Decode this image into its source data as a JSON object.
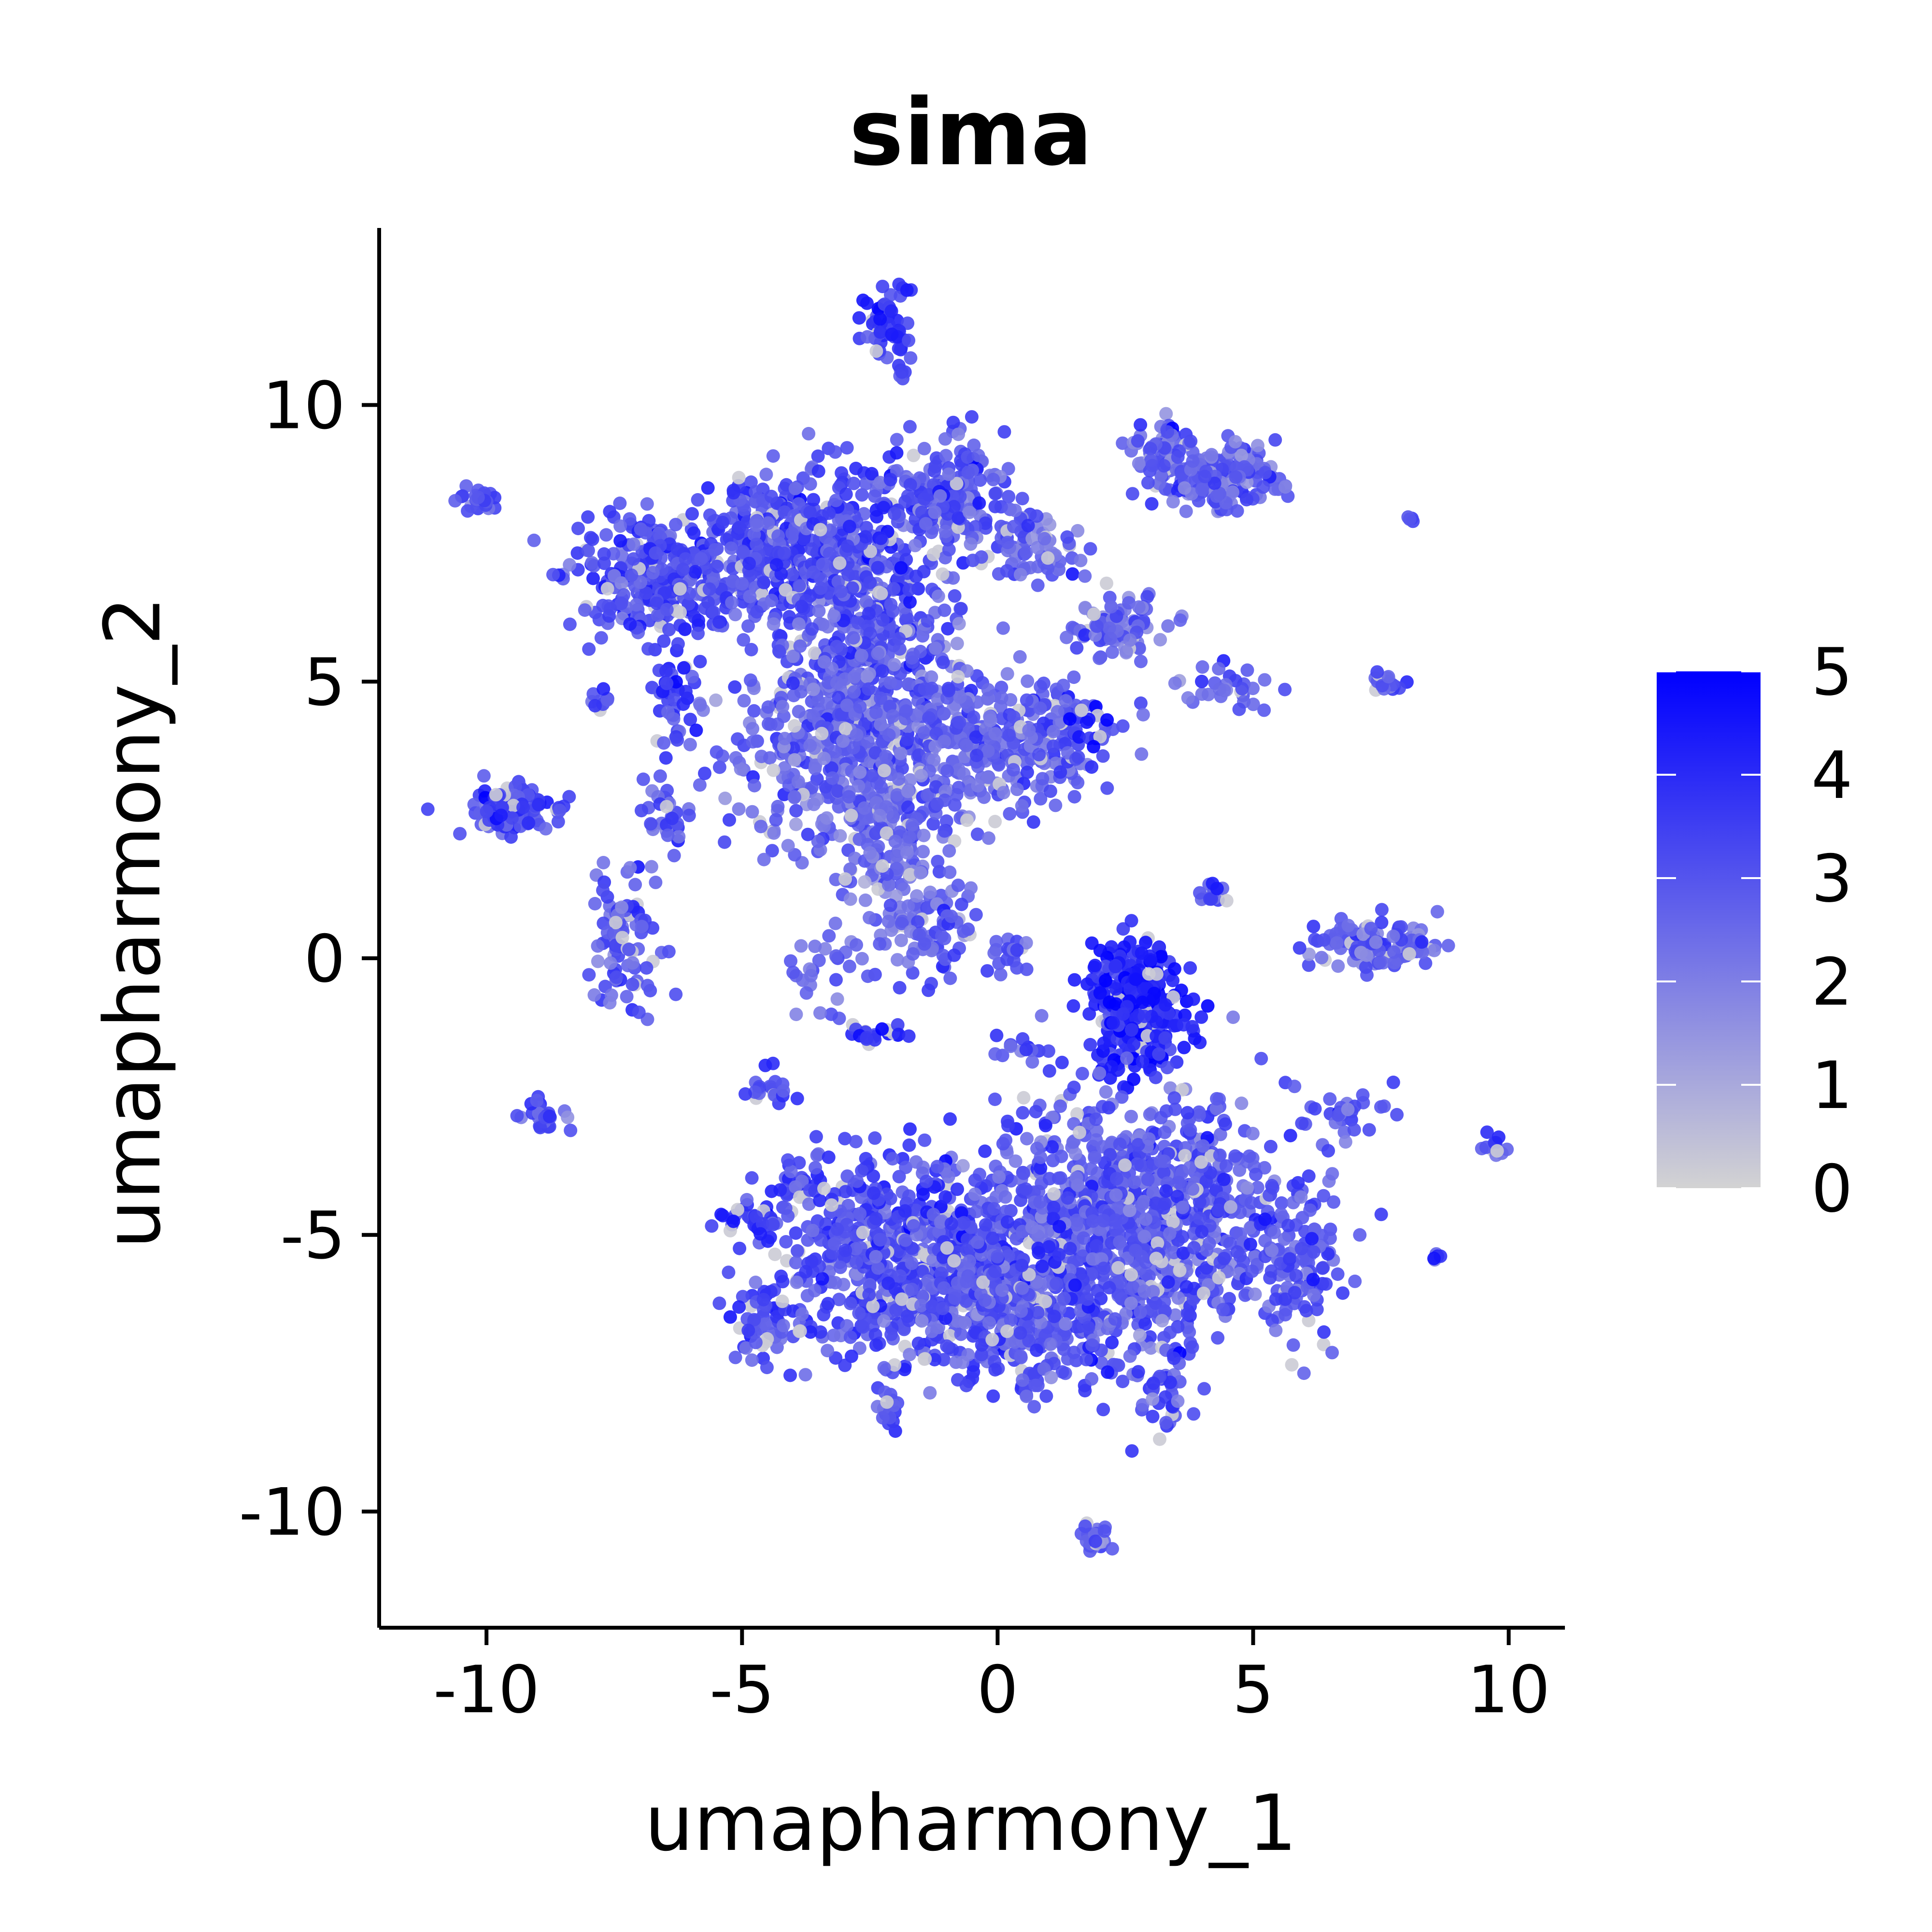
{
  "chart_data": {
    "type": "scatter",
    "title": "sima",
    "xlabel": "umapharmony_1",
    "ylabel": "umapharmony_2",
    "xlim": [
      -12.1,
      11.1
    ],
    "ylim": [
      -12.1,
      13.2
    ],
    "x_ticks": [
      -10,
      -5,
      0,
      5,
      10
    ],
    "y_ticks": [
      -10,
      -5,
      0,
      5,
      10
    ],
    "x_tick_labels": [
      "-10",
      "-5",
      "0",
      "5",
      "10"
    ],
    "y_tick_labels": [
      "-10",
      "-5",
      "0",
      "5",
      "10"
    ],
    "grid": false,
    "color_scale": {
      "low_color": "#d3d3d3",
      "high_color": "#0000ff",
      "min": 0,
      "max": 5,
      "ticks": [
        0,
        1,
        2,
        3,
        4,
        5
      ],
      "tick_labels": [
        "0",
        "1",
        "2",
        "3",
        "4",
        "5"
      ],
      "legend_position": "right"
    },
    "clusters": [
      {
        "cx": -2.2,
        "cy": 11.4,
        "sx": 0.25,
        "sy": 0.35,
        "n": 60,
        "v": 3.8
      },
      {
        "cx": -1.9,
        "cy": 10.6,
        "sx": 0.1,
        "sy": 0.1,
        "n": 6,
        "v": 3.5
      },
      {
        "cx": -10.2,
        "cy": 8.3,
        "sx": 0.2,
        "sy": 0.12,
        "n": 25,
        "v": 3.0
      },
      {
        "cx": -9.5,
        "cy": 2.7,
        "sx": 0.45,
        "sy": 0.22,
        "n": 120,
        "v": 3.3
      },
      {
        "cx": -6.4,
        "cy": 6.9,
        "sx": 0.85,
        "sy": 0.55,
        "n": 380,
        "v": 3.3
      },
      {
        "cx": -4.3,
        "cy": 7.5,
        "sx": 0.5,
        "sy": 0.6,
        "n": 220,
        "v": 3.2
      },
      {
        "cx": -2.7,
        "cy": 6.6,
        "sx": 0.8,
        "sy": 1.1,
        "n": 480,
        "v": 3.2
      },
      {
        "cx": -1.0,
        "cy": 8.4,
        "sx": 0.6,
        "sy": 0.5,
        "n": 180,
        "v": 2.9
      },
      {
        "cx": -2.5,
        "cy": 3.8,
        "sx": 1.3,
        "sy": 1.0,
        "n": 650,
        "v": 2.7
      },
      {
        "cx": 0.6,
        "cy": 4.0,
        "sx": 0.9,
        "sy": 0.55,
        "n": 220,
        "v": 2.8
      },
      {
        "cx": 1.8,
        "cy": 4.2,
        "sx": 0.2,
        "sy": 0.2,
        "n": 12,
        "v": 4.8
      },
      {
        "cx": 0.7,
        "cy": 7.4,
        "sx": 0.6,
        "sy": 0.3,
        "n": 80,
        "v": 2.6
      },
      {
        "cx": -2.0,
        "cy": 1.5,
        "sx": 0.6,
        "sy": 0.9,
        "n": 140,
        "v": 2.6
      },
      {
        "cx": -6.3,
        "cy": 4.6,
        "sx": 0.25,
        "sy": 0.45,
        "n": 40,
        "v": 3.5
      },
      {
        "cx": -6.5,
        "cy": 2.6,
        "sx": 0.2,
        "sy": 0.4,
        "n": 30,
        "v": 3.0
      },
      {
        "cx": -7.3,
        "cy": 0.3,
        "sx": 0.35,
        "sy": 0.7,
        "n": 90,
        "v": 3.0
      },
      {
        "cx": -7.8,
        "cy": 4.7,
        "sx": 0.15,
        "sy": 0.12,
        "n": 10,
        "v": 3.2
      },
      {
        "cx": -8.9,
        "cy": -2.8,
        "sx": 0.2,
        "sy": 0.15,
        "n": 25,
        "v": 3.2
      },
      {
        "cx": -4.8,
        "cy": -4.7,
        "sx": 0.3,
        "sy": 0.15,
        "n": 30,
        "v": 3.4
      },
      {
        "cx": -4.5,
        "cy": -6.7,
        "sx": 0.3,
        "sy": 0.3,
        "n": 50,
        "v": 3.3
      },
      {
        "cx": -4.6,
        "cy": -2.4,
        "sx": 0.25,
        "sy": 0.18,
        "n": 20,
        "v": 3.3
      },
      {
        "cx": -4.0,
        "cy": -4.0,
        "sx": 0.25,
        "sy": 0.2,
        "n": 20,
        "v": 3.5
      },
      {
        "cx": -2.2,
        "cy": -8.2,
        "sx": 0.12,
        "sy": 0.18,
        "n": 15,
        "v": 3.3
      },
      {
        "cx": 3.2,
        "cy": 9.2,
        "sx": 0.25,
        "sy": 0.3,
        "n": 60,
        "v": 2.5
      },
      {
        "cx": 4.3,
        "cy": 8.7,
        "sx": 0.6,
        "sy": 0.3,
        "n": 160,
        "v": 2.7
      },
      {
        "cx": 2.5,
        "cy": 6.0,
        "sx": 0.45,
        "sy": 0.3,
        "n": 80,
        "v": 2.5
      },
      {
        "cx": 4.6,
        "cy": 4.8,
        "sx": 0.45,
        "sy": 0.25,
        "n": 30,
        "v": 2.8
      },
      {
        "cx": 7.7,
        "cy": 5.0,
        "sx": 0.2,
        "sy": 0.1,
        "n": 20,
        "v": 3.0
      },
      {
        "cx": 8.1,
        "cy": 7.9,
        "sx": 0.06,
        "sy": 0.06,
        "n": 5,
        "v": 3.5
      },
      {
        "cx": 4.2,
        "cy": 1.2,
        "sx": 0.15,
        "sy": 0.12,
        "n": 15,
        "v": 3.2
      },
      {
        "cx": 7.4,
        "cy": 0.3,
        "sx": 0.6,
        "sy": 0.25,
        "n": 120,
        "v": 2.7
      },
      {
        "cx": 2.7,
        "cy": -0.9,
        "sx": 0.45,
        "sy": 0.6,
        "n": 320,
        "v": 4.3
      },
      {
        "cx": 0.3,
        "cy": 0.1,
        "sx": 0.25,
        "sy": 0.2,
        "n": 20,
        "v": 3.0
      },
      {
        "cx": -1.4,
        "cy": 0.4,
        "sx": 0.4,
        "sy": 0.35,
        "n": 40,
        "v": 2.6
      },
      {
        "cx": -2.3,
        "cy": -1.4,
        "sx": 0.35,
        "sy": 0.1,
        "n": 20,
        "v": 3.6
      },
      {
        "cx": -3.4,
        "cy": -0.3,
        "sx": 0.3,
        "sy": 0.4,
        "n": 25,
        "v": 2.6
      },
      {
        "cx": 0.5,
        "cy": -1.7,
        "sx": 0.3,
        "sy": 0.2,
        "n": 15,
        "v": 3.2
      },
      {
        "cx": -2.0,
        "cy": -5.4,
        "sx": 1.3,
        "sy": 0.9,
        "n": 600,
        "v": 3.3
      },
      {
        "cx": 2.8,
        "cy": -4.7,
        "sx": 1.5,
        "sy": 1.1,
        "n": 1000,
        "v": 2.9
      },
      {
        "cx": 0.3,
        "cy": -6.2,
        "sx": 1.2,
        "sy": 0.7,
        "n": 450,
        "v": 3.0
      },
      {
        "cx": 5.8,
        "cy": -5.6,
        "sx": 0.35,
        "sy": 0.6,
        "n": 90,
        "v": 3.0
      },
      {
        "cx": 3.3,
        "cy": -7.7,
        "sx": 0.3,
        "sy": 0.45,
        "n": 40,
        "v": 3.0
      },
      {
        "cx": 0.7,
        "cy": -7.7,
        "sx": 0.2,
        "sy": 0.2,
        "n": 15,
        "v": 2.8
      },
      {
        "cx": 6.8,
        "cy": -2.8,
        "sx": 0.5,
        "sy": 0.25,
        "n": 30,
        "v": 3.0
      },
      {
        "cx": 9.7,
        "cy": -3.4,
        "sx": 0.12,
        "sy": 0.1,
        "n": 12,
        "v": 3.0
      },
      {
        "cx": 8.6,
        "cy": -5.4,
        "sx": 0.05,
        "sy": 0.05,
        "n": 5,
        "v": 3.2
      },
      {
        "cx": 1.9,
        "cy": -10.5,
        "sx": 0.15,
        "sy": 0.15,
        "n": 25,
        "v": 2.5
      }
    ]
  }
}
